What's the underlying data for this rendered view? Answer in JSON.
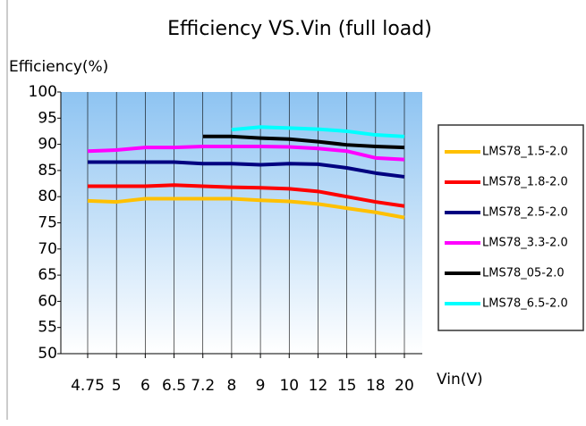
{
  "chart_data": {
    "type": "line",
    "title": "Efficiency VS.Vin (full load)",
    "y_label": "Efficiency(%)",
    "x_label": "Vin(V)",
    "categories": [
      "4.75",
      "5",
      "6",
      "6.5",
      "7.2",
      "8",
      "9",
      "10",
      "12",
      "15",
      "18",
      "20"
    ],
    "ylim": [
      50,
      100
    ],
    "yticks": [
      50,
      55,
      60,
      65,
      70,
      75,
      80,
      85,
      90,
      95,
      100
    ],
    "grid": true,
    "legend": "right",
    "series": [
      {
        "name": "LMS78_1.5-2.0",
        "color": "#ffc000",
        "values": [
          79.2,
          79.0,
          79.6,
          79.6,
          79.6,
          79.6,
          79.3,
          79.1,
          78.6,
          77.8,
          77.0,
          76.0
        ]
      },
      {
        "name": "LMS78_1.8-2.0",
        "color": "#ff0000",
        "values": [
          82.0,
          82.0,
          82.0,
          82.2,
          82.0,
          81.8,
          81.7,
          81.5,
          81.0,
          80.0,
          79.0,
          78.2
        ]
      },
      {
        "name": "LMS78_2.5-2.0",
        "color": "#000080",
        "values": [
          86.6,
          86.6,
          86.6,
          86.6,
          86.3,
          86.3,
          86.1,
          86.3,
          86.2,
          85.5,
          84.5,
          83.8
        ]
      },
      {
        "name": "LMS78_3.3-2.0",
        "color": "#ff00ff",
        "values": [
          88.7,
          88.9,
          89.4,
          89.4,
          89.6,
          89.6,
          89.6,
          89.5,
          89.2,
          88.7,
          87.4,
          87.1
        ]
      },
      {
        "name": "LMS78_05-2.0",
        "color": "#000000",
        "values": [
          null,
          null,
          null,
          null,
          91.5,
          91.5,
          91.2,
          91.0,
          90.5,
          89.9,
          89.6,
          89.4
        ]
      },
      {
        "name": "LMS78_6.5-2.0",
        "color": "#00ffff",
        "values": [
          null,
          null,
          null,
          null,
          null,
          92.8,
          93.3,
          93.1,
          92.9,
          92.5,
          91.8,
          91.5
        ]
      }
    ]
  }
}
